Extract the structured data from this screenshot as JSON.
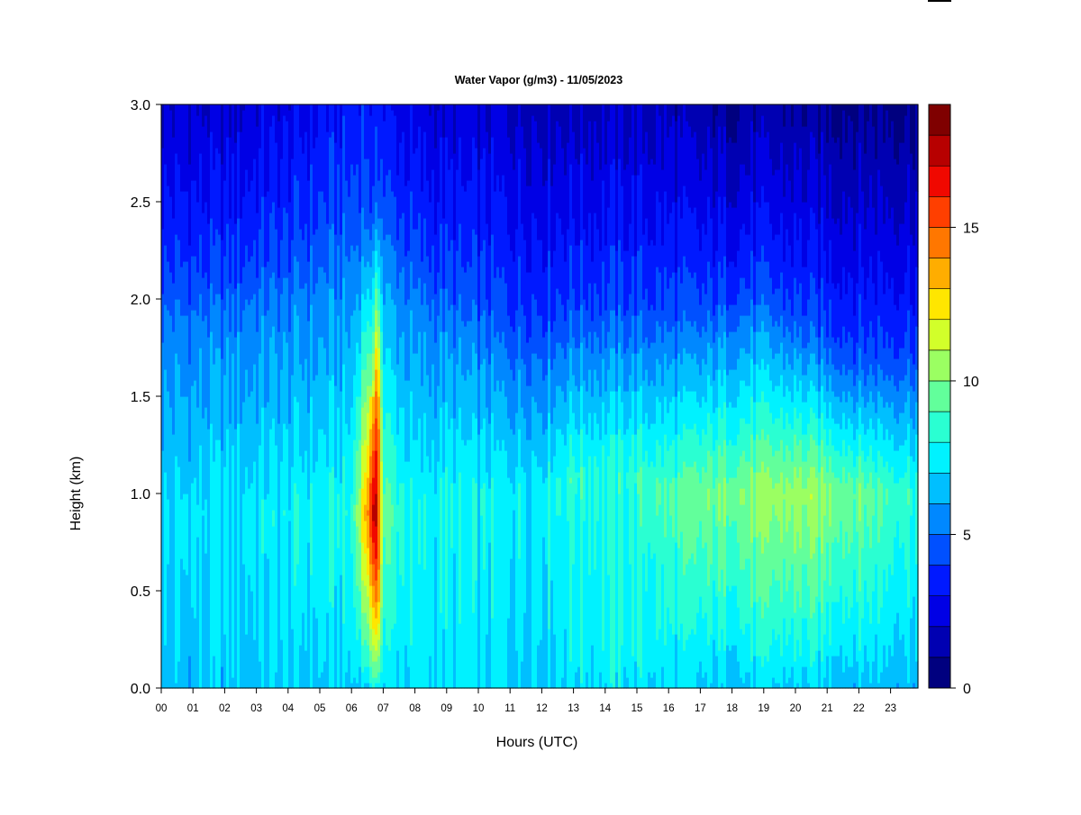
{
  "chart_data": {
    "type": "heatmap",
    "title": "Water Vapor (g/m3) - 11/05/2023",
    "xlabel": "Hours (UTC)",
    "ylabel": "Height (km)",
    "x_ticks": [
      "00",
      "01",
      "02",
      "03",
      "04",
      "05",
      "06",
      "07",
      "08",
      "09",
      "10",
      "11",
      "12",
      "13",
      "14",
      "15",
      "16",
      "17",
      "18",
      "19",
      "20",
      "21",
      "22",
      "23"
    ],
    "xlim": [
      0,
      24
    ],
    "y_ticks": [
      "0.0",
      "0.5",
      "1.0",
      "1.5",
      "2.0",
      "2.5",
      "3.0"
    ],
    "ylim": [
      0,
      3
    ],
    "colorbar": {
      "min": 0,
      "max": 19,
      "levels": [
        0,
        1,
        2,
        3,
        4,
        5,
        6,
        7,
        8,
        9,
        10,
        11,
        12,
        13,
        14,
        15,
        16,
        17,
        18,
        19
      ],
      "tick_labels": [
        "0",
        "5",
        "10",
        "15"
      ],
      "tick_values": [
        0,
        5,
        10,
        15
      ],
      "colors": [
        "#00007f",
        "#0000b2",
        "#0000e5",
        "#0019ff",
        "#0050ff",
        "#0088ff",
        "#00bfff",
        "#00f2ff",
        "#2affd2",
        "#62ff9b",
        "#9bff62",
        "#d2ff2a",
        "#ffe600",
        "#ffad00",
        "#ff7700",
        "#ff3f00",
        "#f00800",
        "#b70000",
        "#7f0000"
      ]
    },
    "field_description_hourly": {
      "hours": [
        0,
        1,
        2,
        3,
        4,
        5,
        6,
        6.8,
        7,
        8,
        9,
        10,
        11,
        12,
        13,
        14,
        15,
        16,
        17,
        18,
        19,
        20,
        21,
        22,
        23,
        23.9
      ],
      "surface_value": [
        6.5,
        6.5,
        6.5,
        6.6,
        6.7,
        6.7,
        6.8,
        7.0,
        7.0,
        7.2,
        7.2,
        7.1,
        7.0,
        7.0,
        7.2,
        7.4,
        7.3,
        7.0,
        6.5,
        6.6,
        6.8,
        6.7,
        6.6,
        6.5,
        6.5,
        6.5
      ],
      "peak_value": [
        7.0,
        7.2,
        7.3,
        7.5,
        7.6,
        7.8,
        8.0,
        18.0,
        9.5,
        7.6,
        7.8,
        7.6,
        7.6,
        7.7,
        8.5,
        8.3,
        8.6,
        9.0,
        9.5,
        10.0,
        10.2,
        10.6,
        10.2,
        9.7,
        9.0,
        8.5
      ],
      "peak_height_km": [
        0.9,
        0.9,
        0.9,
        0.9,
        0.9,
        0.9,
        0.9,
        0.9,
        0.9,
        0.9,
        1.0,
        1.0,
        1.0,
        1.0,
        1.1,
        1.1,
        1.1,
        1.0,
        1.0,
        1.0,
        1.0,
        1.0,
        1.0,
        1.0,
        1.0,
        1.0
      ],
      "moist_layer_top_km": [
        1.9,
        1.9,
        1.9,
        2.0,
        2.0,
        2.1,
        2.2,
        2.5,
        2.3,
        2.0,
        1.9,
        1.8,
        1.7,
        1.7,
        1.8,
        1.8,
        1.8,
        1.8,
        1.8,
        1.9,
        1.9,
        1.8,
        1.7,
        1.6,
        1.6,
        1.6
      ],
      "top_value": [
        2.0,
        2.0,
        2.0,
        2.3,
        2.5,
        3.0,
        3.3,
        4.2,
        3.0,
        2.3,
        2.1,
        2.0,
        2.0,
        1.8,
        1.8,
        1.8,
        1.8,
        1.6,
        1.2,
        1.1,
        1.2,
        1.1,
        1.0,
        0.9,
        0.9,
        0.9
      ]
    }
  }
}
